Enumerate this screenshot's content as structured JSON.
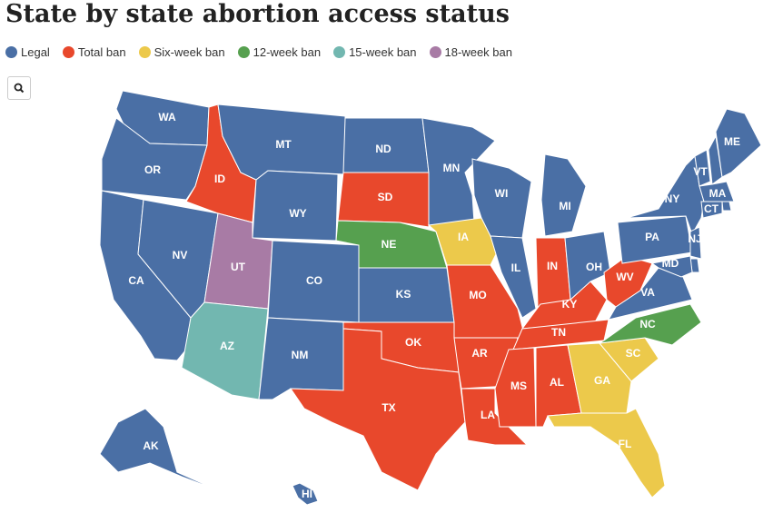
{
  "title": "State by state abortion access status",
  "legend": [
    {
      "label": "Legal",
      "color": "#4a6fa5"
    },
    {
      "label": "Total ban",
      "color": "#e8482c"
    },
    {
      "label": "Six-week ban",
      "color": "#ecc94b"
    },
    {
      "label": "12-week ban",
      "color": "#56a04f"
    },
    {
      "label": "15-week ban",
      "color": "#72b7b0"
    },
    {
      "label": "18-week ban",
      "color": "#a87ba5"
    }
  ],
  "states": [
    {
      "code": "WA",
      "status": 0
    },
    {
      "code": "OR",
      "status": 0
    },
    {
      "code": "CA",
      "status": 0
    },
    {
      "code": "NV",
      "status": 0
    },
    {
      "code": "ID",
      "status": 1
    },
    {
      "code": "MT",
      "status": 0
    },
    {
      "code": "WY",
      "status": 0
    },
    {
      "code": "UT",
      "status": 5
    },
    {
      "code": "CO",
      "status": 0
    },
    {
      "code": "AZ",
      "status": 4
    },
    {
      "code": "NM",
      "status": 0
    },
    {
      "code": "ND",
      "status": 0
    },
    {
      "code": "SD",
      "status": 1
    },
    {
      "code": "NE",
      "status": 3
    },
    {
      "code": "KS",
      "status": 0
    },
    {
      "code": "OK",
      "status": 1
    },
    {
      "code": "TX",
      "status": 1
    },
    {
      "code": "MN",
      "status": 0
    },
    {
      "code": "IA",
      "status": 2
    },
    {
      "code": "MO",
      "status": 1
    },
    {
      "code": "AR",
      "status": 1
    },
    {
      "code": "LA",
      "status": 1
    },
    {
      "code": "WI",
      "status": 0
    },
    {
      "code": "IL",
      "status": 0
    },
    {
      "code": "MI",
      "status": 0
    },
    {
      "code": "IN",
      "status": 1
    },
    {
      "code": "KY",
      "status": 1
    },
    {
      "code": "TN",
      "status": 1
    },
    {
      "code": "MS",
      "status": 1
    },
    {
      "code": "AL",
      "status": 1
    },
    {
      "code": "GA",
      "status": 2
    },
    {
      "code": "FL",
      "status": 2
    },
    {
      "code": "SC",
      "status": 2
    },
    {
      "code": "NC",
      "status": 3
    },
    {
      "code": "OH",
      "status": 0
    },
    {
      "code": "WV",
      "status": 1
    },
    {
      "code": "VA",
      "status": 0
    },
    {
      "code": "PA",
      "status": 0
    },
    {
      "code": "NY",
      "status": 0
    },
    {
      "code": "VT",
      "status": 0
    },
    {
      "code": null,
      "status": 0
    },
    {
      "code": "ME",
      "status": 0
    },
    {
      "code": "MA",
      "status": 0
    },
    {
      "code": null,
      "status": 0
    },
    {
      "code": "CT",
      "status": 0
    },
    {
      "code": "NJ",
      "status": 0
    },
    {
      "code": null,
      "status": 0
    },
    {
      "code": "MD",
      "status": 0
    },
    {
      "code": "AK",
      "status": 0
    },
    {
      "code": "HI",
      "status": 0
    }
  ]
}
